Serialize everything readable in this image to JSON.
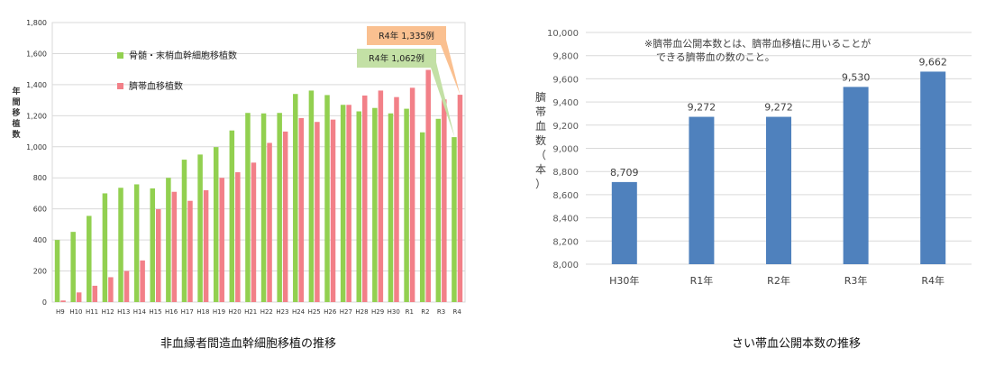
{
  "chart_data": [
    {
      "type": "bar",
      "title": "",
      "ylabel": "年間移植数",
      "ylim": [
        0,
        1800
      ],
      "yticks": [
        "0",
        "200",
        "400",
        "600",
        "800",
        "1,000",
        "1,200",
        "1,400",
        "1,600",
        "1,800"
      ],
      "categories": [
        "H9",
        "H10",
        "H11",
        "H12",
        "H13",
        "H14",
        "H15",
        "H16",
        "H17",
        "H18",
        "H19",
        "H20",
        "H21",
        "H22",
        "H23",
        "H24",
        "H25",
        "H26",
        "H27",
        "H28",
        "H29",
        "H30",
        "R1",
        "R2",
        "R3",
        "R4"
      ],
      "series": [
        {
          "name": "骨髄・末梢血幹細胞移植数",
          "color": "#92d050",
          "values": [
            400,
            452,
            555,
            700,
            736,
            758,
            732,
            800,
            917,
            950,
            998,
            1105,
            1218,
            1215,
            1218,
            1340,
            1362,
            1333,
            1270,
            1228,
            1250,
            1215,
            1245,
            1093,
            1180,
            1062
          ]
        },
        {
          "name": "臍帯血移植数",
          "color": "#f28088",
          "values": [
            10,
            62,
            105,
            160,
            200,
            268,
            598,
            710,
            652,
            720,
            800,
            836,
            898,
            1025,
            1098,
            1185,
            1160,
            1175,
            1270,
            1330,
            1362,
            1320,
            1380,
            1495,
            1305,
            1335
          ]
        }
      ],
      "callouts": [
        {
          "text": "R4年 1,335例",
          "fill": "#fac090",
          "series": 1,
          "index": 25
        },
        {
          "text": "R4年 1,062例",
          "fill": "#c3e0a5",
          "series": 0,
          "index": 25
        }
      ],
      "grid": true,
      "legend": "top-left",
      "caption": "非血縁者間造血幹細胞移植の推移"
    },
    {
      "type": "bar",
      "title": "",
      "ylabel_chars": [
        "臍",
        "帯",
        "血",
        "数",
        "（",
        "本",
        "）"
      ],
      "ylim": [
        8000,
        10000
      ],
      "yticks": [
        "8,000",
        "8,200",
        "8,400",
        "8,600",
        "8,800",
        "9,000",
        "9,200",
        "9,400",
        "9,600",
        "9,800",
        "10,000"
      ],
      "categories": [
        "H30年",
        "R1年",
        "R2年",
        "R3年",
        "R4年"
      ],
      "values": [
        8709,
        9272,
        9272,
        9530,
        9662
      ],
      "value_labels": [
        "8,709",
        "9,272",
        "9,272",
        "9,530",
        "9,662"
      ],
      "color": "#4f81bd",
      "note": [
        "※臍帯血公開本数とは、臍帯血移植に用いることが",
        "できる臍帯血の数のこと。"
      ],
      "grid": true,
      "caption": "さい帯血公開本数の推移"
    }
  ]
}
